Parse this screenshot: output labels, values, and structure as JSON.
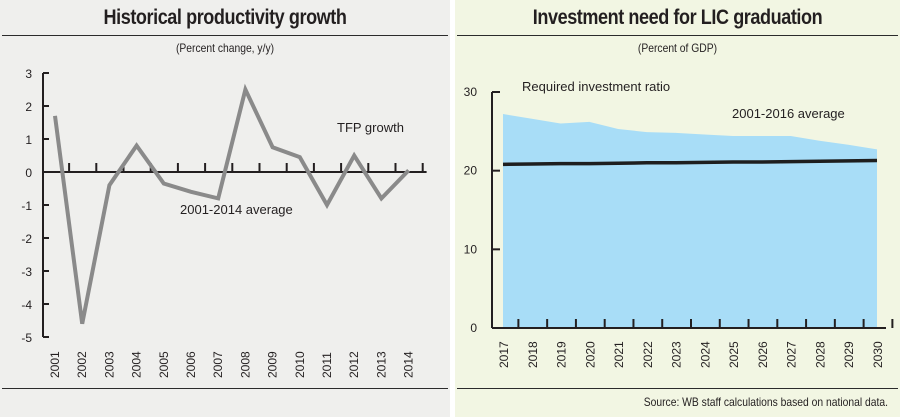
{
  "footer": {
    "source": "Source: WB staff calculations based on national data."
  },
  "chart_data": [
    {
      "type": "line",
      "title": "Historical productivity growth",
      "subtitle": "(Percent change, y/y)",
      "xlabel": "",
      "ylabel": "",
      "ylim": [
        -5,
        3
      ],
      "yticks": [
        3,
        2,
        1,
        0,
        -1,
        -2,
        -3,
        -4,
        -5
      ],
      "categories": [
        "2001",
        "2002",
        "2003",
        "2004",
        "2005",
        "2006",
        "2007",
        "2008",
        "2009",
        "2010",
        "2011",
        "2012",
        "2013",
        "2014"
      ],
      "series": [
        {
          "name": "TFP growth",
          "color": "#8a8a8a",
          "values": [
            1.7,
            -4.6,
            -0.4,
            0.8,
            -0.35,
            -0.6,
            -0.8,
            2.5,
            0.75,
            0.45,
            -1.0,
            0.5,
            -0.8,
            0.05
          ]
        }
      ],
      "annotations": [
        {
          "text": "TFP growth"
        },
        {
          "text": "2001-2014 average"
        }
      ],
      "grid": false,
      "legend": "none"
    },
    {
      "type": "area",
      "title": "Investment need for LIC graduation",
      "subtitle": "(Percent of GDP)",
      "xlabel": "",
      "ylabel": "",
      "ylim": [
        0,
        30
      ],
      "yticks": [
        30,
        20,
        10,
        0
      ],
      "categories": [
        "2017",
        "2018",
        "2019",
        "2020",
        "2021",
        "2022",
        "2023",
        "2024",
        "2025",
        "2026",
        "2027",
        "2028",
        "2029",
        "2030"
      ],
      "series": [
        {
          "name": "Required investment ratio",
          "type": "area",
          "color": "#a8ddf7",
          "values": [
            27.2,
            26.6,
            26.0,
            26.2,
            25.3,
            24.9,
            24.8,
            24.6,
            24.4,
            24.4,
            24.4,
            23.8,
            23.3,
            22.7
          ]
        },
        {
          "name": "2001-2016 average",
          "type": "line",
          "color": "#1e1e1e",
          "values": [
            20.8,
            20.85,
            20.9,
            20.9,
            20.95,
            21.0,
            21.0,
            21.05,
            21.1,
            21.1,
            21.15,
            21.2,
            21.25,
            21.3
          ]
        }
      ],
      "annotations": [
        {
          "text": "Required investment ratio"
        },
        {
          "text": "2001-2016 average"
        }
      ],
      "grid": false,
      "legend": "none"
    }
  ]
}
